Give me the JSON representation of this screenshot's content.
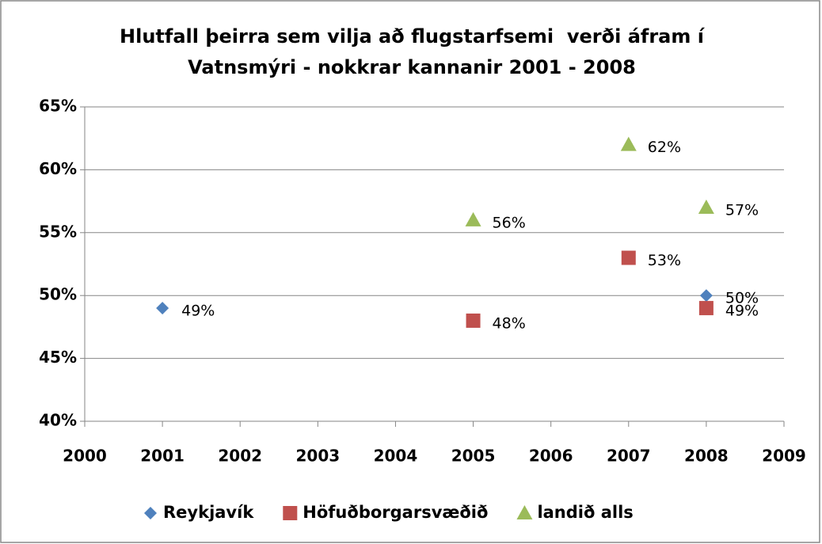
{
  "chart_data": {
    "type": "scatter",
    "title": [
      "Hlutfall þeirra sem vilja að flugstarfsemi  verði áfram í",
      "Vatnsmýri - nokkrar kannanir 2001 - 2008"
    ],
    "xlim": [
      2000,
      2009
    ],
    "xticks": [
      2000,
      2001,
      2002,
      2003,
      2004,
      2005,
      2006,
      2007,
      2008,
      2009
    ],
    "ylim": [
      40,
      65
    ],
    "yticks": [
      {
        "value": 40,
        "label": "40%"
      },
      {
        "value": 45,
        "label": "45%"
      },
      {
        "value": 50,
        "label": "50%"
      },
      {
        "value": 55,
        "label": "55%"
      },
      {
        "value": 60,
        "label": "60%"
      },
      {
        "value": 65,
        "label": "65%"
      }
    ],
    "grid": true,
    "legend": "bottom",
    "series": [
      {
        "name": "Reykjavík",
        "color": "#4f81bd",
        "marker": "diamond",
        "x": [
          2001,
          2008
        ],
        "values": [
          49,
          50
        ],
        "value_labels": [
          "49%",
          "50%"
        ]
      },
      {
        "name": "Höfuðborgarsvæðið",
        "color": "#c0504d",
        "marker": "square",
        "x": [
          2005,
          2007,
          2008
        ],
        "values": [
          48,
          53,
          49
        ],
        "value_labels": [
          "48%",
          "53%",
          "49%"
        ]
      },
      {
        "name": "landið alls",
        "color": "#9bbb59",
        "marker": "triangle",
        "x": [
          2005,
          2007,
          2008
        ],
        "values": [
          56,
          62,
          57
        ],
        "value_labels": [
          "56%",
          "62%",
          "57%"
        ]
      }
    ]
  }
}
